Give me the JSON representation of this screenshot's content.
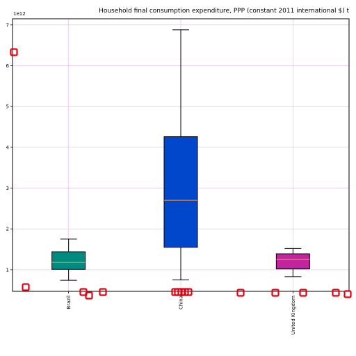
{
  "chart_data": {
    "type": "box",
    "title": "Household final consumption expenditure, PPP (constant 2011 international $) t",
    "xlabel": "",
    "ylabel": "",
    "y_offset_label": "1e12",
    "ylim": [
      0.47,
      7.15
    ],
    "yticks": [
      1,
      2,
      3,
      4,
      5,
      6,
      7
    ],
    "ytick_labels": [
      "1",
      "2",
      "3",
      "4",
      "5",
      "6",
      "7"
    ],
    "grid": true,
    "grid_color": "#e8b8ec",
    "categories": [
      "Brazil",
      "China",
      "United Kingdom"
    ],
    "boxes": [
      {
        "category": "Brazil",
        "whislo": 0.74,
        "q1": 1.01,
        "median": 1.18,
        "q3": 1.44,
        "whishi": 1.75,
        "color": "#008b80"
      },
      {
        "category": "China",
        "whislo": 0.75,
        "q1": 1.55,
        "median": 2.7,
        "q3": 4.26,
        "whishi": 6.88,
        "color": "#0047cc"
      },
      {
        "category": "United Kingdom",
        "whislo": 0.83,
        "q1": 1.02,
        "median": 1.25,
        "q3": 1.39,
        "whishi": 1.52,
        "color": "#c0259f"
      }
    ],
    "median_color": "#d98a3a",
    "marker_color": "#e3000f"
  }
}
